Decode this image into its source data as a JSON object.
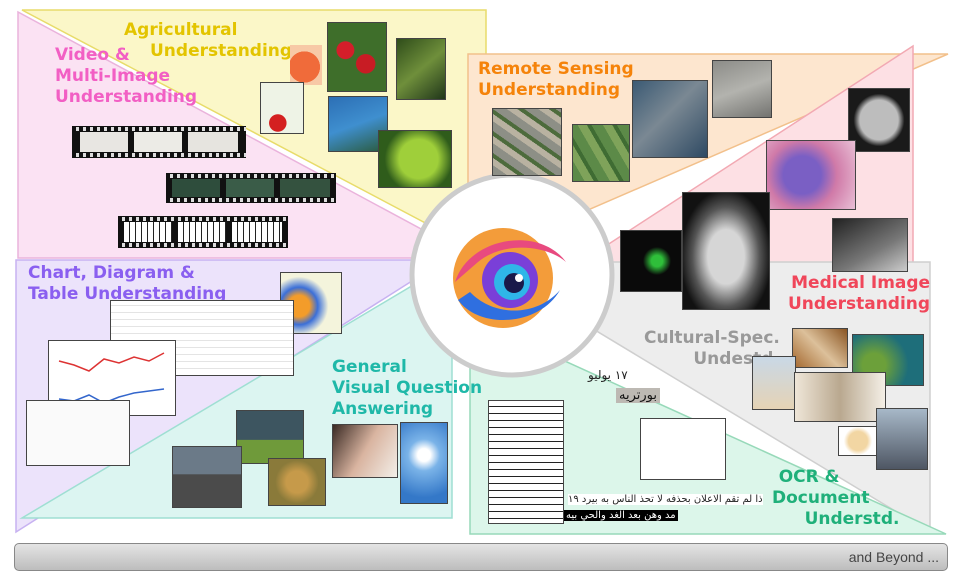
{
  "sections": {
    "agricultural": {
      "line1": "Agricultural",
      "line2": "Understanding",
      "color": "#e3c400"
    },
    "video": {
      "line1": "Video &",
      "line2": "Multi-Image",
      "line3": "Understanding",
      "color": "#f25fc4"
    },
    "remote": {
      "line1": "Remote Sensing",
      "line2": "Understanding",
      "color": "#f5830a"
    },
    "medical": {
      "line1": "Medical Image",
      "line2": "Understanding",
      "color": "#f0465a"
    },
    "chart": {
      "line1": "Chart, Diagram &",
      "line2": "Table Understanding",
      "color": "#8a5ff0"
    },
    "vqa": {
      "line1": "General",
      "line2": "Visual Question",
      "line3": "Answering",
      "color": "#1fb8a8"
    },
    "cultural": {
      "line1": "Cultural-Spec.",
      "line2": "Undestd.",
      "color": "#999999"
    },
    "ocr": {
      "line1": "OCR &",
      "line2": "Document",
      "line3": "Understd.",
      "color": "#1fb07a"
    }
  },
  "ocr_snippets": {
    "s1": "١٧ يوليو",
    "s2": "بورتريه",
    "s3": "ذا لم تقم الاعلان بحذفه لا تحذ الناس به بيرد ١٩",
    "s4": "مد وهن بعد الغد والحي بيه"
  },
  "footer": {
    "text": "and Beyond ..."
  }
}
